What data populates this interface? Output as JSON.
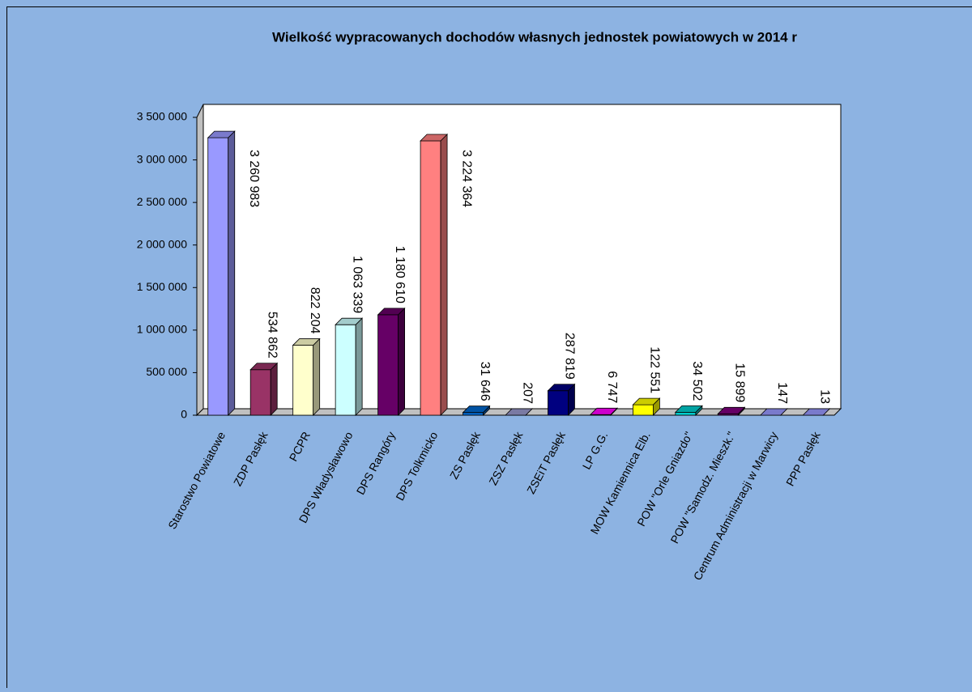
{
  "chart_data": {
    "type": "bar3d",
    "title": "Wielkość wypracowanych dochodów własnych jednostek powiatowych w  2014 r",
    "categories": [
      "Starostwo Powiatowe",
      "ZDP Pasłęk",
      "PCPR",
      "DPS Władysławowo",
      "DPS Rangóry",
      "DPS Tolkmicko",
      "ZS Pasłęk",
      "ZSZ Pasłęk",
      "ZSEiT Pasłęk",
      "LP G.G.",
      "MOW Kamiennica Elb.",
      "POW \"Orle Gniazdo\"",
      "POW \"Samodz. Mieszk.\"",
      "Centrum Administracji w Marwicy",
      "PPP Pasłęk"
    ],
    "values": [
      3260983,
      534862,
      822204,
      1063339,
      1180610,
      3224364,
      31646,
      207,
      287819,
      6747,
      122551,
      34502,
      15899,
      147,
      13
    ],
    "value_labels": [
      "3 260 983",
      "534 862",
      "822 204",
      "1 063 339",
      "1 180 610",
      "3 224 364",
      "31 646",
      "207",
      "287 819",
      "6 747",
      "122 551",
      "34 502",
      "15 899",
      "147",
      "13"
    ],
    "colors": [
      "#9999ff",
      "#993366",
      "#ffffcc",
      "#ccffff",
      "#660066",
      "#ff8080",
      "#0066cc",
      "#9999cc",
      "#000080",
      "#ff00ff",
      "#ffff00",
      "#00cccc",
      "#800080",
      "#9999ff",
      "#9999ff"
    ],
    "ylim": [
      0,
      3500000
    ],
    "yticks": [
      0,
      {
        "value": 500000,
        "label": "500 000"
      },
      {
        "value": 1000000,
        "label": "1 000 000"
      },
      {
        "value": 1500000,
        "label": "1 500 000"
      },
      {
        "value": 2000000,
        "label": "2 000 000"
      },
      {
        "value": 2500000,
        "label": "2 500 000"
      },
      {
        "value": 3000000,
        "label": "3 000 000"
      },
      {
        "value": 3500000,
        "label": "3 500 000"
      }
    ],
    "grid": false
  }
}
